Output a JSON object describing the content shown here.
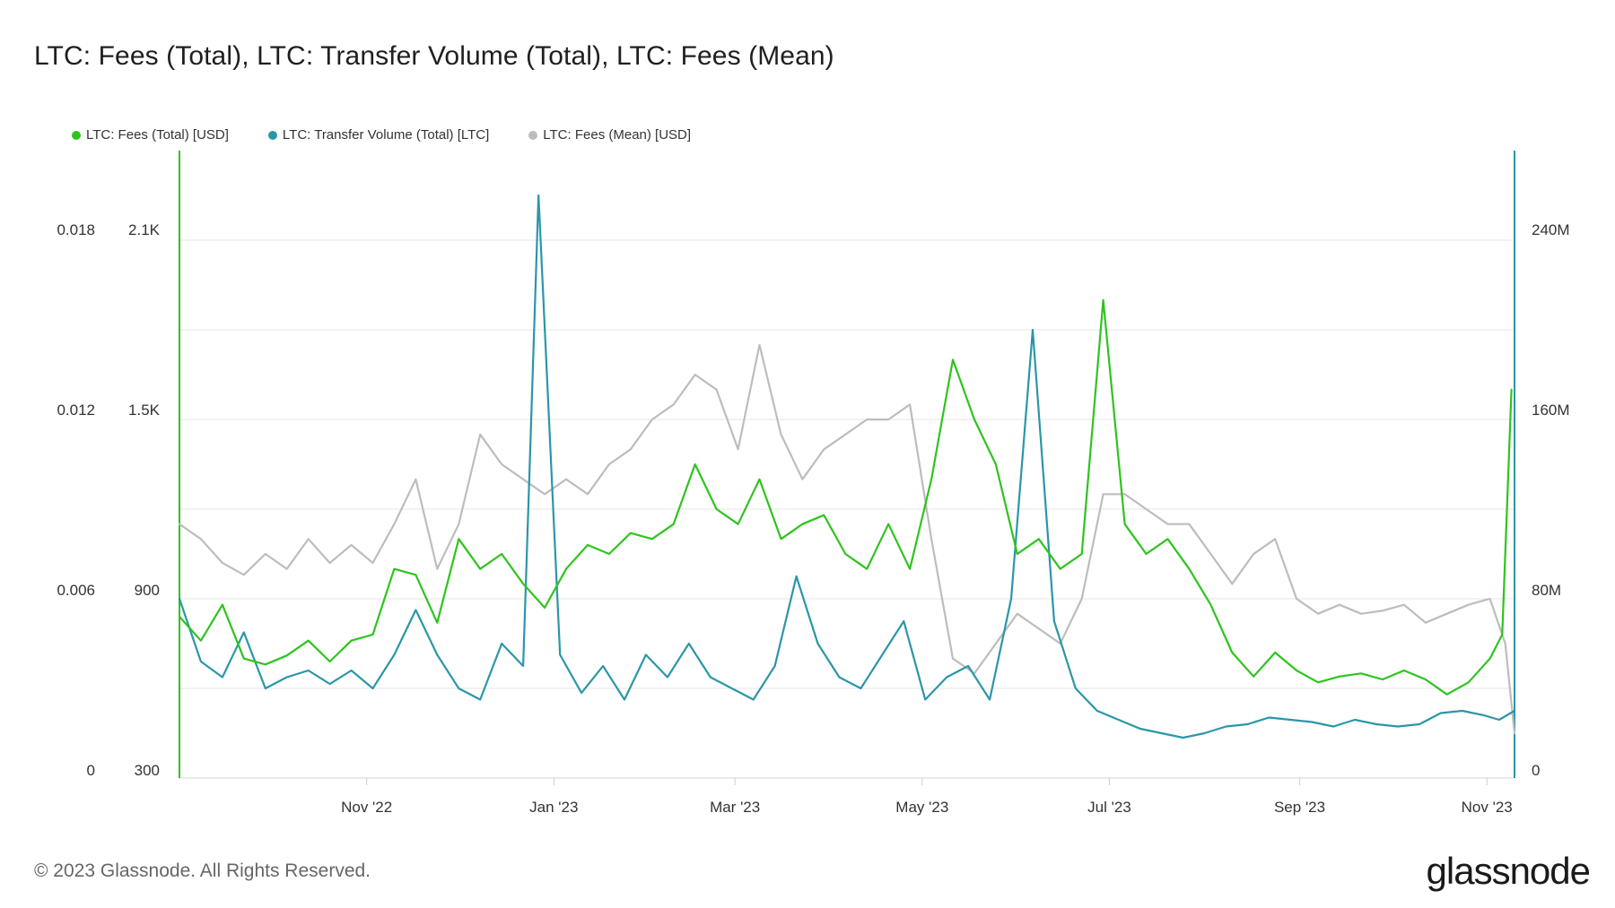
{
  "title": "LTC: Fees (Total), LTC: Transfer Volume (Total), LTC: Fees (Mean)",
  "footer": {
    "copyright": "© 2023 Glassnode. All Rights Reserved.",
    "brand": "glassnode"
  },
  "chart_data": {
    "type": "line",
    "x_ticks": [
      "Nov '22",
      "Jan '23",
      "Mar '23",
      "May '23",
      "Jul '23",
      "Sep '23",
      "Nov '23"
    ],
    "x_tick_dates": [
      "2022-11-01",
      "2023-01-01",
      "2023-03-01",
      "2023-05-01",
      "2023-07-01",
      "2023-09-01",
      "2023-11-01"
    ],
    "x_range": [
      "2022-09-01",
      "2023-11-10"
    ],
    "axes": {
      "left_outer": {
        "ticks": [
          "0",
          "0.006",
          "0.012",
          "0.018"
        ],
        "range": [
          0,
          0.021
        ],
        "series": "LTC: Fees (Mean) [USD]"
      },
      "left_inner": {
        "ticks": [
          "300",
          "900",
          "1.5K",
          "2.1K"
        ],
        "range": [
          300,
          2400
        ],
        "series": "LTC: Fees (Total) [USD]"
      },
      "right": {
        "ticks": [
          "0",
          "80M",
          "160M",
          "240M"
        ],
        "range": [
          0,
          280000000
        ],
        "series": "LTC: Transfer Volume (Total) [LTC]"
      }
    },
    "grid": true,
    "legend_position": "top-left",
    "series": [
      {
        "name": "LTC: Fees (Total) [USD]",
        "color": "#2ec41e",
        "axis": "left_inner",
        "points": [
          [
            "2022-09-01",
            840
          ],
          [
            "2022-09-08",
            760
          ],
          [
            "2022-09-15",
            880
          ],
          [
            "2022-09-22",
            700
          ],
          [
            "2022-09-29",
            680
          ],
          [
            "2022-10-06",
            710
          ],
          [
            "2022-10-13",
            760
          ],
          [
            "2022-10-20",
            690
          ],
          [
            "2022-10-27",
            760
          ],
          [
            "2022-11-03",
            780
          ],
          [
            "2022-11-10",
            1000
          ],
          [
            "2022-11-17",
            980
          ],
          [
            "2022-11-24",
            820
          ],
          [
            "2022-12-01",
            1100
          ],
          [
            "2022-12-08",
            1000
          ],
          [
            "2022-12-15",
            1050
          ],
          [
            "2022-12-22",
            950
          ],
          [
            "2022-12-29",
            870
          ],
          [
            "2023-01-05",
            1000
          ],
          [
            "2023-01-12",
            1080
          ],
          [
            "2023-01-19",
            1050
          ],
          [
            "2023-01-26",
            1120
          ],
          [
            "2023-02-02",
            1100
          ],
          [
            "2023-02-09",
            1150
          ],
          [
            "2023-02-16",
            1350
          ],
          [
            "2023-02-23",
            1200
          ],
          [
            "2023-03-02",
            1150
          ],
          [
            "2023-03-09",
            1300
          ],
          [
            "2023-03-16",
            1100
          ],
          [
            "2023-03-23",
            1150
          ],
          [
            "2023-03-30",
            1180
          ],
          [
            "2023-04-06",
            1050
          ],
          [
            "2023-04-13",
            1000
          ],
          [
            "2023-04-20",
            1150
          ],
          [
            "2023-04-27",
            1000
          ],
          [
            "2023-05-04",
            1300
          ],
          [
            "2023-05-11",
            1700
          ],
          [
            "2023-05-18",
            1500
          ],
          [
            "2023-05-25",
            1350
          ],
          [
            "2023-06-01",
            1050
          ],
          [
            "2023-06-08",
            1100
          ],
          [
            "2023-06-15",
            1000
          ],
          [
            "2023-06-22",
            1050
          ],
          [
            "2023-06-29",
            1900
          ],
          [
            "2023-07-06",
            1150
          ],
          [
            "2023-07-13",
            1050
          ],
          [
            "2023-07-20",
            1100
          ],
          [
            "2023-07-27",
            1000
          ],
          [
            "2023-08-03",
            880
          ],
          [
            "2023-08-10",
            720
          ],
          [
            "2023-08-17",
            640
          ],
          [
            "2023-08-24",
            720
          ],
          [
            "2023-08-31",
            660
          ],
          [
            "2023-09-07",
            620
          ],
          [
            "2023-09-14",
            640
          ],
          [
            "2023-09-21",
            650
          ],
          [
            "2023-09-28",
            630
          ],
          [
            "2023-10-05",
            660
          ],
          [
            "2023-10-12",
            630
          ],
          [
            "2023-10-19",
            580
          ],
          [
            "2023-10-26",
            620
          ],
          [
            "2023-11-02",
            700
          ],
          [
            "2023-11-06",
            780
          ],
          [
            "2023-11-09",
            1600
          ]
        ]
      },
      {
        "name": "LTC: Transfer Volume (Total) [LTC]",
        "color": "#2b96a8",
        "axis": "right",
        "points": [
          [
            "2022-09-01",
            80000000
          ],
          [
            "2022-09-08",
            52000000
          ],
          [
            "2022-09-15",
            45000000
          ],
          [
            "2022-09-22",
            65000000
          ],
          [
            "2022-09-29",
            40000000
          ],
          [
            "2022-10-06",
            45000000
          ],
          [
            "2022-10-13",
            48000000
          ],
          [
            "2022-10-20",
            42000000
          ],
          [
            "2022-10-27",
            48000000
          ],
          [
            "2022-11-03",
            40000000
          ],
          [
            "2022-11-10",
            55000000
          ],
          [
            "2022-11-17",
            75000000
          ],
          [
            "2022-11-24",
            55000000
          ],
          [
            "2022-12-01",
            40000000
          ],
          [
            "2022-12-08",
            35000000
          ],
          [
            "2022-12-15",
            60000000
          ],
          [
            "2022-12-22",
            50000000
          ],
          [
            "2022-12-27",
            260000000
          ],
          [
            "2023-01-03",
            55000000
          ],
          [
            "2023-01-10",
            38000000
          ],
          [
            "2023-01-17",
            50000000
          ],
          [
            "2023-01-24",
            35000000
          ],
          [
            "2023-01-31",
            55000000
          ],
          [
            "2023-02-07",
            45000000
          ],
          [
            "2023-02-14",
            60000000
          ],
          [
            "2023-02-21",
            45000000
          ],
          [
            "2023-02-28",
            40000000
          ],
          [
            "2023-03-07",
            35000000
          ],
          [
            "2023-03-14",
            50000000
          ],
          [
            "2023-03-21",
            90000000
          ],
          [
            "2023-03-28",
            60000000
          ],
          [
            "2023-04-04",
            45000000
          ],
          [
            "2023-04-11",
            40000000
          ],
          [
            "2023-04-18",
            55000000
          ],
          [
            "2023-04-25",
            70000000
          ],
          [
            "2023-05-02",
            35000000
          ],
          [
            "2023-05-09",
            45000000
          ],
          [
            "2023-05-16",
            50000000
          ],
          [
            "2023-05-23",
            35000000
          ],
          [
            "2023-05-30",
            80000000
          ],
          [
            "2023-06-06",
            200000000
          ],
          [
            "2023-06-13",
            70000000
          ],
          [
            "2023-06-20",
            40000000
          ],
          [
            "2023-06-27",
            30000000
          ],
          [
            "2023-07-04",
            26000000
          ],
          [
            "2023-07-11",
            22000000
          ],
          [
            "2023-07-18",
            20000000
          ],
          [
            "2023-07-25",
            18000000
          ],
          [
            "2023-08-01",
            20000000
          ],
          [
            "2023-08-08",
            23000000
          ],
          [
            "2023-08-15",
            24000000
          ],
          [
            "2023-08-22",
            27000000
          ],
          [
            "2023-08-29",
            26000000
          ],
          [
            "2023-09-05",
            25000000
          ],
          [
            "2023-09-12",
            23000000
          ],
          [
            "2023-09-19",
            26000000
          ],
          [
            "2023-09-26",
            24000000
          ],
          [
            "2023-10-03",
            23000000
          ],
          [
            "2023-10-10",
            24000000
          ],
          [
            "2023-10-17",
            29000000
          ],
          [
            "2023-10-24",
            30000000
          ],
          [
            "2023-10-31",
            28000000
          ],
          [
            "2023-11-05",
            26000000
          ],
          [
            "2023-11-10",
            30000000
          ]
        ]
      },
      {
        "name": "LTC: Fees (Mean) [USD]",
        "color": "#bdbdbd",
        "axis": "left_outer",
        "points": [
          [
            "2022-09-01",
            0.0085
          ],
          [
            "2022-09-08",
            0.008
          ],
          [
            "2022-09-15",
            0.0072
          ],
          [
            "2022-09-22",
            0.0068
          ],
          [
            "2022-09-29",
            0.0075
          ],
          [
            "2022-10-06",
            0.007
          ],
          [
            "2022-10-13",
            0.008
          ],
          [
            "2022-10-20",
            0.0072
          ],
          [
            "2022-10-27",
            0.0078
          ],
          [
            "2022-11-03",
            0.0072
          ],
          [
            "2022-11-10",
            0.0085
          ],
          [
            "2022-11-17",
            0.01
          ],
          [
            "2022-11-24",
            0.007
          ],
          [
            "2022-12-01",
            0.0085
          ],
          [
            "2022-12-08",
            0.0115
          ],
          [
            "2022-12-15",
            0.0105
          ],
          [
            "2022-12-22",
            0.01
          ],
          [
            "2022-12-29",
            0.0095
          ],
          [
            "2023-01-05",
            0.01
          ],
          [
            "2023-01-12",
            0.0095
          ],
          [
            "2023-01-19",
            0.0105
          ],
          [
            "2023-01-26",
            0.011
          ],
          [
            "2023-02-02",
            0.012
          ],
          [
            "2023-02-09",
            0.0125
          ],
          [
            "2023-02-16",
            0.0135
          ],
          [
            "2023-02-23",
            0.013
          ],
          [
            "2023-03-02",
            0.011
          ],
          [
            "2023-03-09",
            0.0145
          ],
          [
            "2023-03-16",
            0.0115
          ],
          [
            "2023-03-23",
            0.01
          ],
          [
            "2023-03-30",
            0.011
          ],
          [
            "2023-04-06",
            0.0115
          ],
          [
            "2023-04-13",
            0.012
          ],
          [
            "2023-04-20",
            0.012
          ],
          [
            "2023-04-27",
            0.0125
          ],
          [
            "2023-05-04",
            0.008
          ],
          [
            "2023-05-11",
            0.004
          ],
          [
            "2023-05-18",
            0.0035
          ],
          [
            "2023-05-25",
            0.0045
          ],
          [
            "2023-06-01",
            0.0055
          ],
          [
            "2023-06-08",
            0.005
          ],
          [
            "2023-06-15",
            0.0045
          ],
          [
            "2023-06-22",
            0.006
          ],
          [
            "2023-06-29",
            0.0095
          ],
          [
            "2023-07-06",
            0.0095
          ],
          [
            "2023-07-13",
            0.009
          ],
          [
            "2023-07-20",
            0.0085
          ],
          [
            "2023-07-27",
            0.0085
          ],
          [
            "2023-08-03",
            0.0075
          ],
          [
            "2023-08-10",
            0.0065
          ],
          [
            "2023-08-17",
            0.0075
          ],
          [
            "2023-08-24",
            0.008
          ],
          [
            "2023-08-31",
            0.006
          ],
          [
            "2023-09-07",
            0.0055
          ],
          [
            "2023-09-14",
            0.0058
          ],
          [
            "2023-09-21",
            0.0055
          ],
          [
            "2023-09-28",
            0.0056
          ],
          [
            "2023-10-05",
            0.0058
          ],
          [
            "2023-10-12",
            0.0052
          ],
          [
            "2023-10-19",
            0.0055
          ],
          [
            "2023-10-26",
            0.0058
          ],
          [
            "2023-11-02",
            0.006
          ],
          [
            "2023-11-07",
            0.0045
          ],
          [
            "2023-11-10",
            0.0015
          ]
        ]
      }
    ]
  }
}
